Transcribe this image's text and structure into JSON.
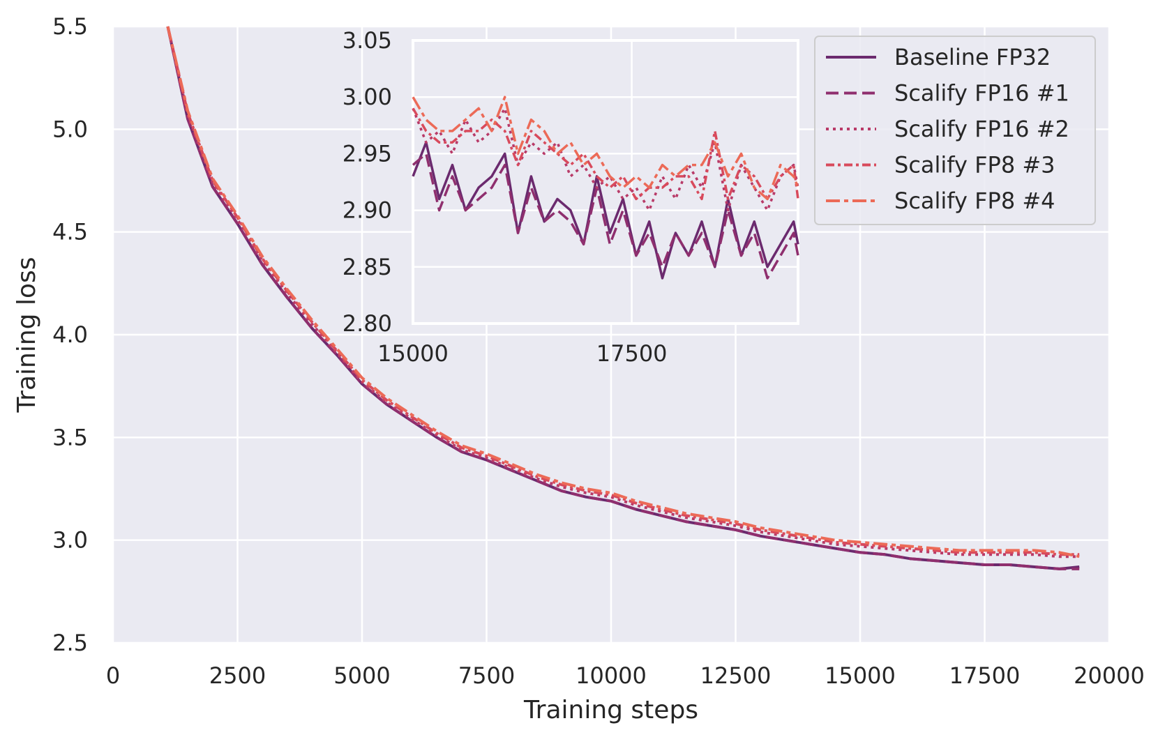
{
  "chart_data": {
    "type": "line",
    "title": "",
    "xlabel": "Training steps",
    "ylabel": "Training loss",
    "xlim": [
      0,
      20000
    ],
    "ylim": [
      2.5,
      5.5
    ],
    "x_ticks": [
      0,
      2500,
      5000,
      7500,
      10000,
      12500,
      15000,
      17500,
      20000
    ],
    "x_tick_labels": [
      "0",
      "2500",
      "5000",
      "7500",
      "10000",
      "12500",
      "15000",
      "17500",
      "20000"
    ],
    "y_ticks": [
      2.5,
      3.0,
      3.5,
      4.0,
      4.5,
      5.0,
      5.5
    ],
    "y_tick_labels": [
      "2.5",
      "3.0",
      "3.5",
      "4.0",
      "4.5",
      "5.0",
      "5.5"
    ],
    "grid": true,
    "legend_position": "top-right",
    "x": [
      1100,
      1500,
      2000,
      2500,
      3000,
      3500,
      4000,
      4500,
      5000,
      5500,
      6000,
      6500,
      7000,
      7500,
      8000,
      8500,
      9000,
      9500,
      10000,
      10500,
      11000,
      11500,
      12000,
      12500,
      13000,
      13500,
      14000,
      14500,
      15000,
      15500,
      16000,
      16500,
      17000,
      17500,
      18000,
      18500,
      19000,
      19400
    ],
    "series": [
      {
        "name": "Baseline FP32",
        "color": "#6b2a6e",
        "dash": "solid",
        "values": [
          5.5,
          5.05,
          4.72,
          4.54,
          4.34,
          4.18,
          4.03,
          3.9,
          3.76,
          3.66,
          3.58,
          3.5,
          3.43,
          3.39,
          3.34,
          3.29,
          3.24,
          3.21,
          3.19,
          3.15,
          3.12,
          3.09,
          3.07,
          3.05,
          3.02,
          3.0,
          2.98,
          2.96,
          2.94,
          2.93,
          2.91,
          2.9,
          2.89,
          2.88,
          2.88,
          2.87,
          2.86,
          2.87
        ]
      },
      {
        "name": "Scalify FP16 #1",
        "color": "#8f2f6e",
        "dash": "dashed",
        "values": [
          5.5,
          5.05,
          4.72,
          4.54,
          4.34,
          4.18,
          4.03,
          3.9,
          3.76,
          3.66,
          3.58,
          3.5,
          3.43,
          3.39,
          3.34,
          3.29,
          3.24,
          3.21,
          3.19,
          3.15,
          3.12,
          3.09,
          3.07,
          3.05,
          3.02,
          3.0,
          2.98,
          2.96,
          2.94,
          2.93,
          2.91,
          2.9,
          2.89,
          2.88,
          2.88,
          2.87,
          2.86,
          2.86
        ]
      },
      {
        "name": "Scalify FP16 #2",
        "color": "#b83a68",
        "dash": "dotted",
        "values": [
          5.5,
          5.07,
          4.74,
          4.56,
          4.36,
          4.2,
          4.05,
          3.91,
          3.77,
          3.67,
          3.59,
          3.51,
          3.44,
          3.4,
          3.35,
          3.3,
          3.26,
          3.23,
          3.21,
          3.17,
          3.14,
          3.11,
          3.09,
          3.07,
          3.04,
          3.02,
          3.0,
          2.98,
          2.97,
          2.96,
          2.95,
          2.94,
          2.93,
          2.93,
          2.93,
          2.93,
          2.92,
          2.92
        ]
      },
      {
        "name": "Scalify FP8 #3",
        "color": "#d84a5c",
        "dash": "dashdot-dense",
        "values": [
          5.5,
          5.08,
          4.75,
          4.57,
          4.37,
          4.21,
          4.06,
          3.92,
          3.78,
          3.68,
          3.6,
          3.52,
          3.45,
          3.41,
          3.36,
          3.31,
          3.27,
          3.24,
          3.22,
          3.18,
          3.15,
          3.12,
          3.1,
          3.08,
          3.05,
          3.03,
          3.01,
          2.99,
          2.98,
          2.97,
          2.96,
          2.95,
          2.94,
          2.94,
          2.94,
          2.94,
          2.93,
          2.93
        ]
      },
      {
        "name": "Scalify FP8 #4",
        "color": "#ec6a57",
        "dash": "dashdot",
        "values": [
          5.5,
          5.09,
          4.76,
          4.58,
          4.38,
          4.22,
          4.07,
          3.93,
          3.79,
          3.69,
          3.61,
          3.53,
          3.46,
          3.42,
          3.37,
          3.32,
          3.28,
          3.25,
          3.23,
          3.19,
          3.16,
          3.13,
          3.11,
          3.09,
          3.06,
          3.04,
          3.02,
          3.0,
          2.99,
          2.98,
          2.97,
          2.96,
          2.95,
          2.95,
          2.95,
          2.95,
          2.94,
          2.92
        ]
      }
    ],
    "inset": {
      "type": "line",
      "xlim": [
        15000,
        19400
      ],
      "ylim": [
        2.8,
        3.05
      ],
      "x_ticks": [
        15000,
        17500
      ],
      "x_tick_labels": [
        "15000",
        "17500"
      ],
      "y_ticks": [
        2.8,
        2.85,
        2.9,
        2.95,
        3.0,
        3.05
      ],
      "y_tick_labels": [
        "2.80",
        "2.85",
        "2.90",
        "2.95",
        "3.00",
        "3.05"
      ],
      "grid": true,
      "x": [
        15000,
        15150,
        15300,
        15450,
        15600,
        15750,
        15900,
        16050,
        16200,
        16350,
        16500,
        16650,
        16800,
        16950,
        17100,
        17250,
        17400,
        17550,
        17700,
        17850,
        18000,
        18150,
        18300,
        18450,
        18600,
        18750,
        18900,
        19050,
        19200,
        19350,
        19400
      ],
      "series": [
        {
          "name": "Baseline FP32",
          "values": [
            2.93,
            2.96,
            2.91,
            2.94,
            2.9,
            2.92,
            2.93,
            2.95,
            2.88,
            2.93,
            2.89,
            2.91,
            2.9,
            2.87,
            2.93,
            2.88,
            2.91,
            2.86,
            2.89,
            2.84,
            2.88,
            2.86,
            2.89,
            2.85,
            2.91,
            2.86,
            2.89,
            2.85,
            2.87,
            2.89,
            2.87
          ]
        },
        {
          "name": "Scalify FP16 #1",
          "values": [
            2.94,
            2.95,
            2.9,
            2.93,
            2.9,
            2.91,
            2.92,
            2.94,
            2.88,
            2.92,
            2.89,
            2.9,
            2.89,
            2.87,
            2.92,
            2.87,
            2.9,
            2.86,
            2.88,
            2.85,
            2.88,
            2.86,
            2.88,
            2.85,
            2.9,
            2.86,
            2.88,
            2.84,
            2.86,
            2.88,
            2.86
          ]
        },
        {
          "name": "Scalify FP16 #2",
          "values": [
            2.99,
            2.96,
            2.97,
            2.95,
            2.98,
            2.96,
            2.97,
            2.99,
            2.94,
            2.96,
            2.95,
            2.96,
            2.93,
            2.94,
            2.92,
            2.93,
            2.91,
            2.92,
            2.9,
            2.93,
            2.91,
            2.94,
            2.92,
            2.96,
            2.9,
            2.94,
            2.92,
            2.9,
            2.93,
            2.94,
            2.92
          ]
        },
        {
          "name": "Scalify FP8 #3",
          "values": [
            2.99,
            2.97,
            2.96,
            2.96,
            2.97,
            2.97,
            2.98,
            2.97,
            2.94,
            2.97,
            2.96,
            2.95,
            2.94,
            2.95,
            2.93,
            2.92,
            2.93,
            2.91,
            2.92,
            2.92,
            2.93,
            2.93,
            2.91,
            2.97,
            2.91,
            2.94,
            2.93,
            2.91,
            2.93,
            2.94,
            2.91
          ]
        },
        {
          "name": "Scalify FP8 #4",
          "values": [
            3.0,
            2.98,
            2.97,
            2.97,
            2.98,
            2.99,
            2.97,
            3.0,
            2.95,
            2.98,
            2.97,
            2.95,
            2.96,
            2.94,
            2.95,
            2.93,
            2.92,
            2.93,
            2.92,
            2.94,
            2.93,
            2.94,
            2.94,
            2.96,
            2.93,
            2.95,
            2.92,
            2.91,
            2.94,
            2.93,
            2.92
          ]
        }
      ]
    }
  }
}
